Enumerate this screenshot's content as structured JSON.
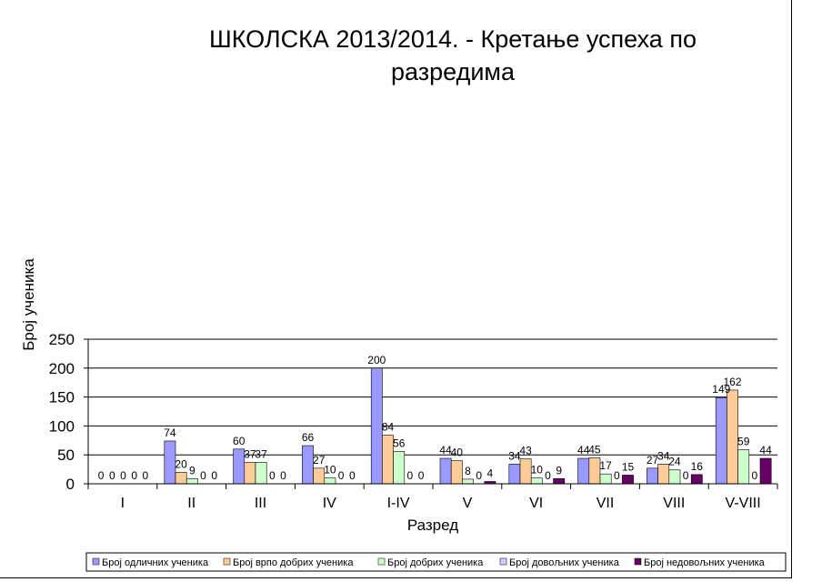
{
  "chart_data": {
    "type": "bar",
    "title_line1": "ШКОЛСКА 2013/2014. - Кретање успеха по",
    "title_line2": "разредима",
    "xlabel": "Разред",
    "ylabel": "Број ученика",
    "ylim": [
      0,
      250
    ],
    "yticks": [
      0,
      50,
      100,
      150,
      200,
      250
    ],
    "grid": true,
    "legend_position": "bottom",
    "categories": [
      "I",
      "II",
      "III",
      "IV",
      "I-IV",
      "V",
      "VI",
      "VII",
      "VIII",
      "V-VIII"
    ],
    "series": [
      {
        "name": "Број одличних ученика",
        "color": "#9999ff",
        "values": [
          0,
          74,
          60,
          66,
          200,
          44,
          34,
          44,
          27,
          149
        ]
      },
      {
        "name": "Број врпо добрих ученика",
        "color": "#ffcc99",
        "values": [
          0,
          20,
          37,
          27,
          84,
          40,
          43,
          45,
          34,
          162
        ]
      },
      {
        "name": "Број добрих ученика",
        "color": "#ccffcc",
        "values": [
          0,
          9,
          37,
          10,
          56,
          8,
          10,
          17,
          24,
          59
        ]
      },
      {
        "name": "Број довољних ученика",
        "color": "#ccccff",
        "values": [
          0,
          0,
          0,
          0,
          0,
          0,
          0,
          0,
          0,
          0
        ]
      },
      {
        "name": "Број недовољних ученика",
        "color": "#660066",
        "values": [
          0,
          0,
          0,
          0,
          0,
          4,
          9,
          15,
          16,
          44
        ]
      }
    ]
  }
}
